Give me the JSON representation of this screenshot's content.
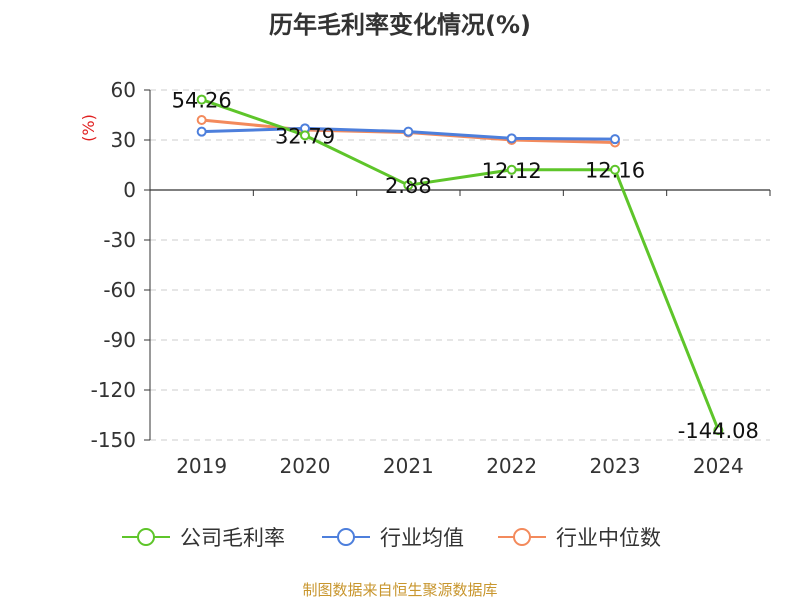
{
  "chart_data": {
    "type": "line",
    "title": "历年毛利率变化情况(%)",
    "ylabel": "(%)",
    "xlabel": "",
    "categories": [
      "2019",
      "2020",
      "2021",
      "2022",
      "2023",
      "2024"
    ],
    "ylim": [
      -150,
      60
    ],
    "yticks": [
      60,
      30,
      0,
      -30,
      -60,
      -90,
      -120,
      -150
    ],
    "grid": true,
    "legend_position": "bottom",
    "series": [
      {
        "name": "公司毛利率",
        "color": "#5ec52a",
        "values": [
          54.26,
          32.79,
          2.88,
          12.12,
          12.16,
          -144.08
        ],
        "data_labels": [
          "54.26",
          "32.79",
          "2.88",
          "12.12",
          "12.16",
          "-144.08"
        ]
      },
      {
        "name": "行业均值",
        "color": "#4d7fdc",
        "values": [
          35,
          37,
          35,
          31,
          30.5,
          null
        ]
      },
      {
        "name": "行业中位数",
        "color": "#f38a5c",
        "values": [
          42,
          36,
          34.5,
          30,
          28.5,
          null
        ]
      }
    ],
    "source": "制图数据来自恒生聚源数据库"
  }
}
